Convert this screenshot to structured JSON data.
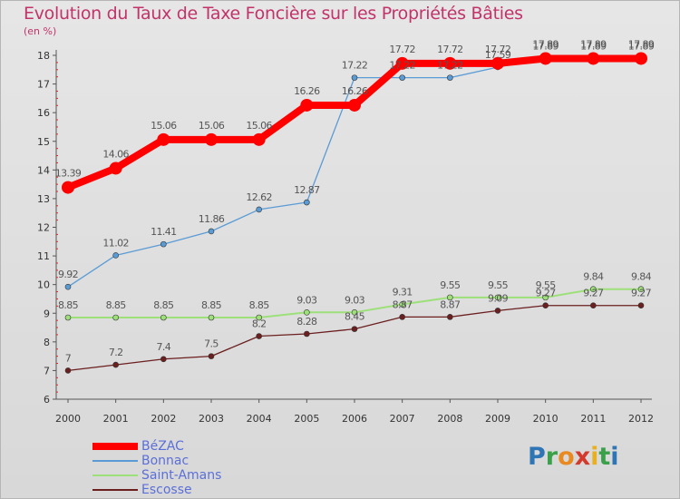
{
  "chart_data": {
    "type": "line",
    "title": "Evolution du Taux de Taxe Foncière sur les Propriétés Bâties",
    "unit_label": "(en %)",
    "x": [
      "2000",
      "2001",
      "2002",
      "2003",
      "2004",
      "2005",
      "2006",
      "2007",
      "2008",
      "2009",
      "2010",
      "2011",
      "2012"
    ],
    "ylim": [
      6,
      18
    ],
    "yticks": [
      6,
      7,
      8,
      9,
      10,
      11,
      12,
      13,
      14,
      15,
      16,
      17,
      18
    ],
    "grid": false,
    "legend_position": "bottom-left",
    "series": [
      {
        "name": "BéZAC",
        "color": "#ff0000",
        "width": 8,
        "dot": 7,
        "values": [
          13.39,
          14.06,
          15.06,
          15.06,
          15.06,
          16.26,
          16.26,
          17.72,
          17.72,
          17.72,
          17.89,
          17.89,
          17.89
        ],
        "labels": [
          "13.39",
          "14.06",
          "15.06",
          "15.06",
          "15.06",
          "16.26",
          "16.26",
          "17.72",
          "17.72",
          "17.72",
          "17.89",
          "17.89",
          "17.89"
        ]
      },
      {
        "name": "Bonnac",
        "color": "#5b9bd5",
        "width": 1.3,
        "dot": 3,
        "values": [
          9.92,
          11.02,
          11.41,
          11.86,
          12.62,
          12.87,
          17.22,
          17.22,
          17.22,
          17.59,
          17.89,
          17.89,
          17.89
        ],
        "labels": [
          "9.92",
          "11.02",
          "11.41",
          "11.86",
          "12.62",
          "12.87",
          "17.22",
          "17.22",
          "17.22",
          "17.59",
          "17.89",
          "17.89",
          "17.89"
        ]
      },
      {
        "name": "Saint-Amans",
        "color": "#9de07a",
        "width": 2,
        "dot": 3,
        "values": [
          8.85,
          8.85,
          8.85,
          8.85,
          8.85,
          9.03,
          9.03,
          9.31,
          9.55,
          9.55,
          9.55,
          9.84,
          9.84
        ],
        "labels": [
          "8.85",
          "8.85",
          "8.85",
          "8.85",
          "8.85",
          "9.03",
          "9.03",
          "9.31",
          "9.55",
          "9.55",
          "9.55",
          "9.84",
          "9.84"
        ]
      },
      {
        "name": "Escosse",
        "color": "#6b1f1f",
        "width": 1.3,
        "dot": 3,
        "values": [
          7,
          7.2,
          7.4,
          7.5,
          8.2,
          8.28,
          8.45,
          8.87,
          8.87,
          9.09,
          9.27,
          9.27,
          9.27
        ],
        "labels": [
          "7",
          "7.2",
          "7.4",
          "7.5",
          "8.2",
          "8.28",
          "8.45",
          "8.87",
          "8.87",
          "9.09",
          "9.27",
          "9.27",
          "9.27"
        ]
      }
    ]
  },
  "logo": {
    "letters": [
      "P",
      "r",
      "o",
      "x",
      "i",
      "t",
      "i"
    ]
  }
}
